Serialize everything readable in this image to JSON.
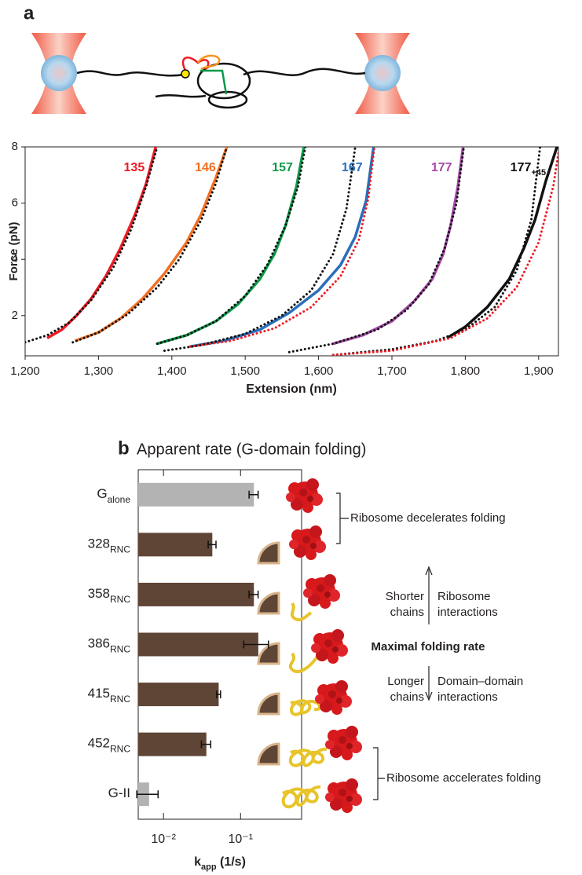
{
  "chart_data": [
    {
      "type": "line",
      "panel_label": "a",
      "xlabel": "Extension (nm)",
      "ylabel": "Force (pN)",
      "xlim": [
        1200,
        1927
      ],
      "ylim": [
        0.57,
        8
      ],
      "xticks": [
        {
          "value": 1200,
          "label": "1,200"
        },
        {
          "value": 1300,
          "label": "1,300"
        },
        {
          "value": 1400,
          "label": "1,400"
        },
        {
          "value": 1500,
          "label": "1,500"
        },
        {
          "value": 1600,
          "label": "1,600"
        },
        {
          "value": 1700,
          "label": "1,700"
        },
        {
          "value": 1800,
          "label": "1,800"
        },
        {
          "value": 1900,
          "label": "1,900"
        }
      ],
      "yticks": [
        2,
        4,
        6,
        8
      ],
      "series": [
        {
          "name": "135",
          "color": "#ed1c24",
          "x": [
            1230,
            1250,
            1270,
            1290,
            1310,
            1330,
            1350,
            1365,
            1378
          ],
          "values": [
            1.2,
            1.5,
            2,
            2.6,
            3.4,
            4.4,
            5.6,
            6.7,
            8
          ]
        },
        {
          "name": "146",
          "color": "#f26f21",
          "x": [
            1268,
            1300,
            1330,
            1360,
            1390,
            1420,
            1440,
            1460,
            1475
          ],
          "values": [
            1.1,
            1.4,
            1.9,
            2.6,
            3.5,
            4.6,
            5.6,
            6.9,
            8
          ]
        },
        {
          "name": "157",
          "color": "#0c9a48",
          "x": [
            1380,
            1420,
            1460,
            1490,
            1520,
            1540,
            1555,
            1570,
            1580
          ],
          "values": [
            1,
            1.3,
            1.8,
            2.4,
            3.3,
            4.2,
            5.2,
            6.6,
            8
          ]
        },
        {
          "name": "167",
          "color": "#2a6ebb",
          "x": [
            1425,
            1470,
            1520,
            1560,
            1600,
            1630,
            1650,
            1665,
            1675
          ],
          "values": [
            0.9,
            1.1,
            1.5,
            2.1,
            2.9,
            3.8,
            4.8,
            6.1,
            8
          ]
        },
        {
          "name": "177",
          "color": "#a649a8",
          "x": [
            1620,
            1660,
            1700,
            1730,
            1755,
            1770,
            1780,
            1790,
            1797
          ],
          "values": [
            1,
            1.3,
            1.8,
            2.5,
            3.3,
            4.2,
            5.2,
            6.6,
            8
          ]
        },
        {
          "name": "177",
          "name_sub": "+45",
          "color": "#111111",
          "x": [
            1775,
            1800,
            1830,
            1860,
            1880,
            1895,
            1910,
            1925
          ],
          "values": [
            1.2,
            1.6,
            2.3,
            3.3,
            4.4,
            5.4,
            6.8,
            8
          ]
        }
      ],
      "fits": [
        {
          "color": "#111111",
          "x": [
            1200,
            1230,
            1260,
            1290,
            1320,
            1345,
            1365,
            1380
          ],
          "values": [
            1.05,
            1.3,
            1.75,
            2.55,
            3.7,
            5.1,
            6.6,
            8
          ]
        },
        {
          "color": "#111111",
          "x": [
            1265,
            1300,
            1340,
            1380,
            1410,
            1440,
            1460,
            1475
          ],
          "values": [
            1.05,
            1.4,
            2.05,
            3,
            4,
            5.4,
            6.7,
            8
          ]
        },
        {
          "color": "#111111",
          "x": [
            1380,
            1420,
            1460,
            1500,
            1530,
            1555,
            1572,
            1582
          ],
          "values": [
            1,
            1.3,
            1.8,
            2.7,
            3.8,
            5.2,
            6.6,
            8
          ]
        },
        {
          "color": "#111111",
          "x": [
            1390,
            1440,
            1500,
            1550,
            1590,
            1620,
            1638,
            1650
          ],
          "values": [
            0.75,
            0.95,
            1.35,
            2,
            2.9,
            4.2,
            5.8,
            8
          ]
        },
        {
          "color": "#ed1c24",
          "x": [
            1425,
            1480,
            1540,
            1590,
            1630,
            1655,
            1668,
            1676
          ],
          "values": [
            0.9,
            1.1,
            1.55,
            2.3,
            3.4,
            4.7,
            6.2,
            8
          ]
        },
        {
          "color": "#111111",
          "x": [
            1560,
            1620,
            1680,
            1720,
            1750,
            1772,
            1788,
            1798
          ],
          "values": [
            0.7,
            1,
            1.5,
            2.2,
            3.1,
            4.4,
            6,
            8
          ]
        },
        {
          "color": "#111111",
          "x": [
            1620,
            1700,
            1760,
            1800,
            1840,
            1870,
            1890,
            1902
          ],
          "values": [
            0.6,
            0.8,
            1.1,
            1.5,
            2.3,
            3.6,
            5.4,
            8
          ]
        },
        {
          "color": "#ed1c24",
          "x": [
            1620,
            1700,
            1780,
            1830,
            1870,
            1900,
            1920,
            1927
          ],
          "values": [
            0.6,
            0.75,
            1.2,
            1.9,
            3,
            4.6,
            6.6,
            7.8
          ]
        }
      ]
    },
    {
      "type": "hbar",
      "panel_label": "b",
      "title": "Apparent rate (G-domain folding)",
      "categories": [
        "G",
        "328",
        "358",
        "386",
        "415",
        "452",
        "G-II"
      ],
      "category_subscripts": [
        "alone",
        "RNC",
        "RNC",
        "RNC",
        "RNC",
        "RNC",
        null
      ],
      "values": [
        0.149,
        0.043,
        0.149,
        0.17,
        0.052,
        0.036,
        0.0065
      ],
      "errors": [
        0.02,
        0.005,
        0.02,
        0.06,
        0.003,
        0.005,
        0.002
      ],
      "colors": [
        "#b3b3b3",
        "#5e4536",
        "#5e4536",
        "#5e4536",
        "#5e4536",
        "#5e4536",
        "#b3b3b3"
      ],
      "xscale": "log",
      "xlim": [
        0.0047,
        0.62
      ],
      "xticks": [
        {
          "value": 0.01,
          "label": "10⁻²"
        },
        {
          "value": 0.1,
          "label": "10⁻¹"
        }
      ],
      "xlabel": {
        "main": "k",
        "sub": "app",
        "rest": " (1/s)"
      },
      "annotations": [
        "Ribosome decelerates folding",
        "Shorter",
        "chains",
        "Ribosome",
        "interactions",
        "Maximal folding rate",
        "Longer",
        "chains",
        "Domain–domain",
        "interactions",
        "Ribosome accelerates folding"
      ]
    }
  ]
}
